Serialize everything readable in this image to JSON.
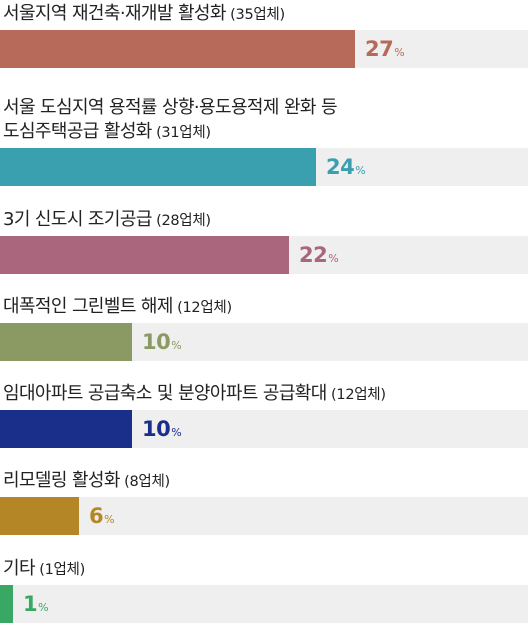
{
  "chart_data": {
    "type": "bar",
    "orientation": "horizontal",
    "unit": "%",
    "bars": [
      {
        "line1": "서울지역 재건축·재개발 활성화",
        "line2": "",
        "count": "(35업체)",
        "value": 27,
        "color": "#b86a5a"
      },
      {
        "line1": "서울 도심지역 용적률 상향·용도용적제 완화 등",
        "line2": "도심주택공급 활성화",
        "count": "(31업체)",
        "value": 24,
        "color": "#3a9fae"
      },
      {
        "line1": "3기 신도시 조기공급",
        "line2": "",
        "count": "(28업체)",
        "value": 22,
        "color": "#a9667d"
      },
      {
        "line1": "대폭적인 그린벨트 해제",
        "line2": "",
        "count": "(12업체)",
        "value": 10,
        "color": "#8a9a62"
      },
      {
        "line1": "임대아파트 공급축소 및 분양아파트 공급확대",
        "line2": "",
        "count": "(12업체)",
        "value": 10,
        "color": "#1a2f8a"
      },
      {
        "line1": "리모델링 활성화",
        "line2": "",
        "count": "(8업체)",
        "value": 6,
        "color": "#b58626"
      },
      {
        "line1": "기타",
        "line2": "",
        "count": "(1업체)",
        "value": 1,
        "color": "#3aa865"
      }
    ]
  }
}
